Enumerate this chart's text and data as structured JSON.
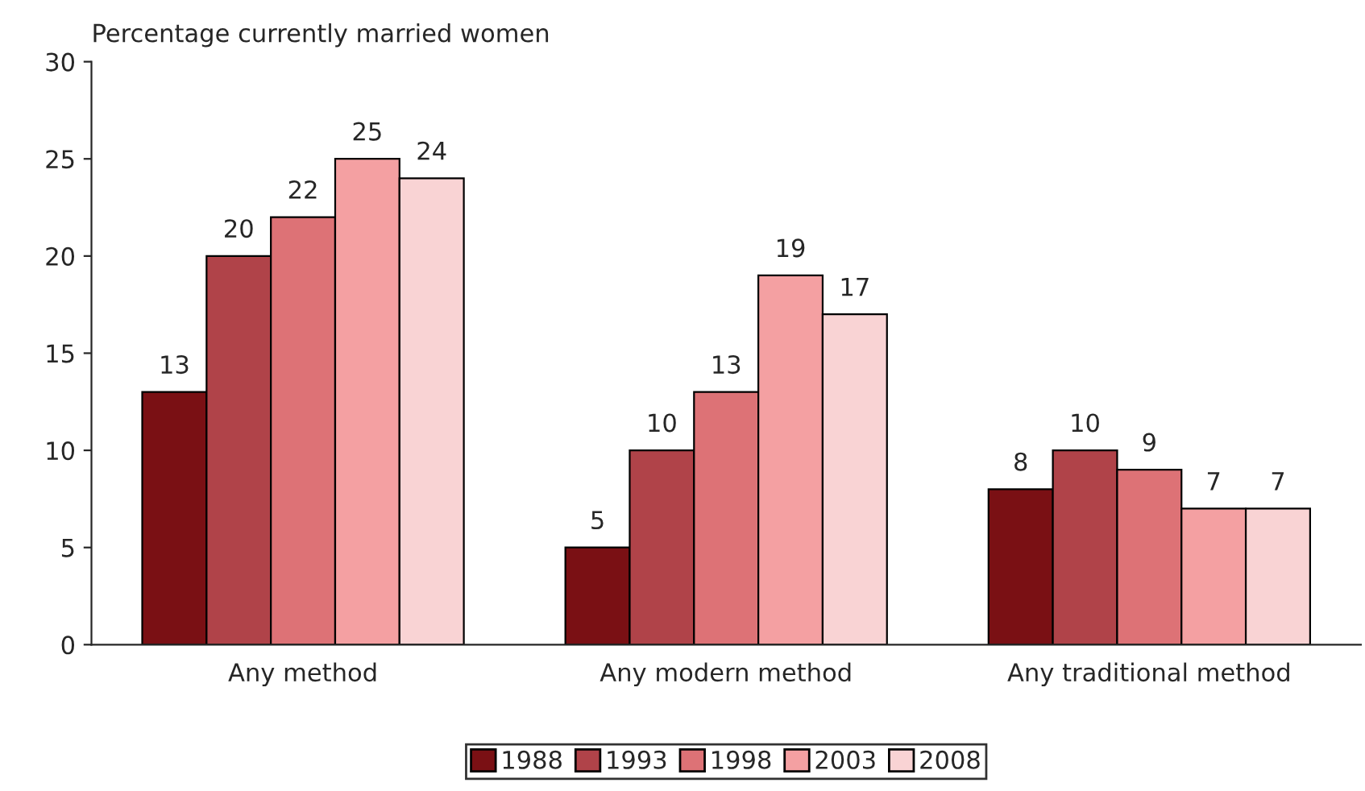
{
  "chart_data": {
    "type": "bar",
    "ylabel": "Percentage currently married women",
    "categories": [
      "Any method",
      "Any modern method",
      "Any traditional method"
    ],
    "series": [
      {
        "name": "1988",
        "color": "#7a1014",
        "values": [
          13,
          5,
          8
        ]
      },
      {
        "name": "1993",
        "color": "#b04349",
        "values": [
          20,
          10,
          10
        ]
      },
      {
        "name": "1998",
        "color": "#dd7276",
        "values": [
          22,
          13,
          9
        ]
      },
      {
        "name": "2003",
        "color": "#f4a0a2",
        "values": [
          25,
          19,
          7
        ]
      },
      {
        "name": "2008",
        "color": "#f9d3d4",
        "values": [
          24,
          17,
          7
        ]
      }
    ],
    "ylim": [
      0,
      30
    ],
    "yticks": [
      0,
      5,
      10,
      15,
      20,
      25,
      30
    ],
    "data_labels": true,
    "grid": false,
    "legend": "bottom"
  }
}
